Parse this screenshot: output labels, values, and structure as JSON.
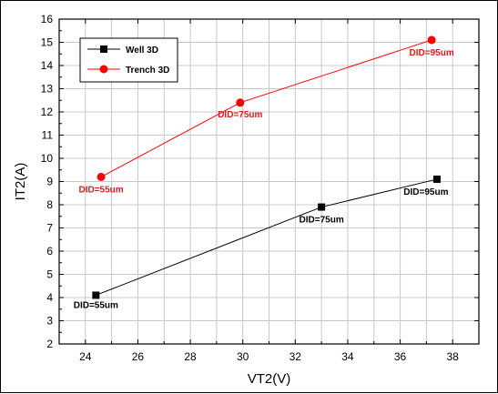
{
  "chart_data": {
    "type": "line",
    "xlabel": "VT2(V)",
    "ylabel": "IT2(A)",
    "xlim": [
      23,
      39
    ],
    "ylim": [
      2,
      16
    ],
    "xticks": [
      24,
      26,
      28,
      30,
      32,
      34,
      36,
      38
    ],
    "yticks": [
      2,
      3,
      4,
      5,
      6,
      7,
      8,
      9,
      10,
      11,
      12,
      13,
      14,
      15,
      16
    ],
    "grid": true,
    "legend_position": "top-left",
    "series": [
      {
        "name": "Well 3D",
        "color": "#000000",
        "marker": "square",
        "points": [
          {
            "x": 24.4,
            "y": 4.1,
            "label": "DID=55um"
          },
          {
            "x": 33.0,
            "y": 7.9,
            "label": "DID=75um"
          },
          {
            "x": 37.4,
            "y": 9.1,
            "label": "DID=95um"
          }
        ]
      },
      {
        "name": "Trench 3D",
        "color": "#ff0000",
        "marker": "circle",
        "points": [
          {
            "x": 24.6,
            "y": 9.2,
            "label": "DID=55um"
          },
          {
            "x": 29.9,
            "y": 12.4,
            "label": "DID=75um"
          },
          {
            "x": 37.2,
            "y": 15.1,
            "label": "DID=95um"
          }
        ]
      }
    ]
  },
  "colors": {
    "label_red": "#d42020",
    "grid": "#c8c8c8"
  }
}
